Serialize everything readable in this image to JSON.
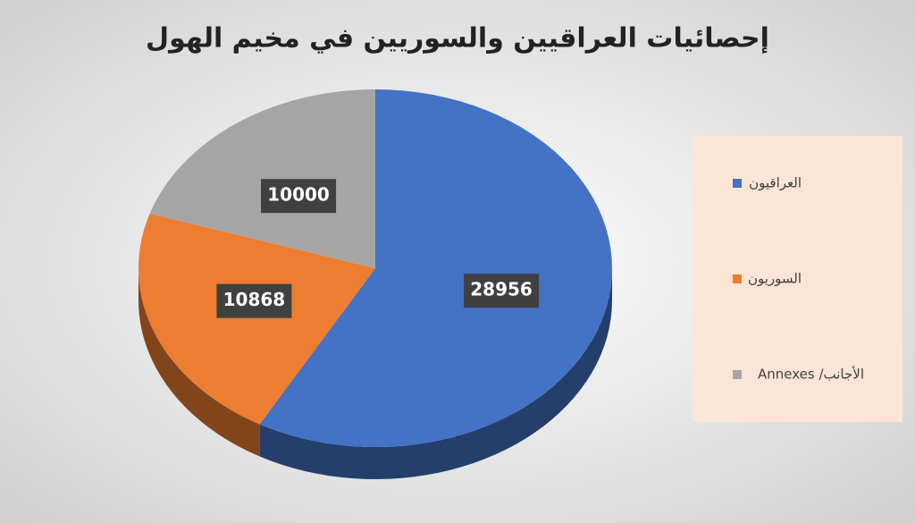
{
  "chart_data": {
    "type": "pie",
    "title": "إحصائيات العراقيين والسوريين في مخيم الهول",
    "categories": [
      "العراقيون",
      "السوريون",
      "الأجانب/ Annexes"
    ],
    "values": [
      28956,
      10868,
      10000
    ],
    "colors": [
      "#4472c4",
      "#ed7d31",
      "#a5a5a5"
    ],
    "legend": "right"
  }
}
